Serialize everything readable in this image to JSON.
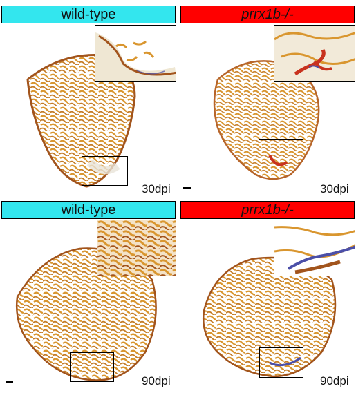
{
  "panels": {
    "top_left": {
      "label": "wild-type",
      "timepoint": "30dpi",
      "colour": "#33e6ee"
    },
    "top_right": {
      "label": "prrx1b-/-",
      "timepoint": "30dpi",
      "colour": "#ff0000"
    },
    "bottom_left": {
      "label": "wild-type",
      "timepoint": "90dpi",
      "colour": "#33e6ee"
    },
    "bottom_right": {
      "label": "prrx1b-/-",
      "timepoint": "90dpi",
      "colour": "#ff0000"
    }
  },
  "colours": {
    "myocardium": "#d9962f",
    "myocardium_dark": "#a2541c",
    "fibrin_red": "#c8321e",
    "collagen_blue": "#4b4fa8"
  }
}
